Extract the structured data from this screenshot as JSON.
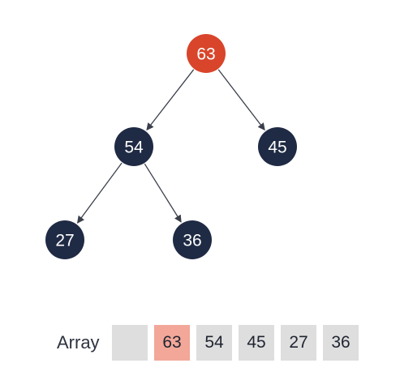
{
  "colors": {
    "root": "#d8452b",
    "node": "#1f2a44",
    "highlight_cell": "#f2a799",
    "cell": "#dedede"
  },
  "tree": {
    "nodes": [
      {
        "id": "n63",
        "value": "63",
        "highlight": true
      },
      {
        "id": "n54",
        "value": "54",
        "highlight": false
      },
      {
        "id": "n45",
        "value": "45",
        "highlight": false
      },
      {
        "id": "n27",
        "value": "27",
        "highlight": false
      },
      {
        "id": "n36",
        "value": "36",
        "highlight": false
      }
    ],
    "edges": [
      {
        "from": "n63",
        "to": "n54"
      },
      {
        "from": "n63",
        "to": "n45"
      },
      {
        "from": "n54",
        "to": "n27"
      },
      {
        "from": "n54",
        "to": "n36"
      }
    ]
  },
  "array": {
    "label": "Array",
    "cells": [
      {
        "value": "",
        "highlight": false
      },
      {
        "value": "63",
        "highlight": true
      },
      {
        "value": "54",
        "highlight": false
      },
      {
        "value": "45",
        "highlight": false
      },
      {
        "value": "27",
        "highlight": false
      },
      {
        "value": "36",
        "highlight": false
      }
    ]
  }
}
